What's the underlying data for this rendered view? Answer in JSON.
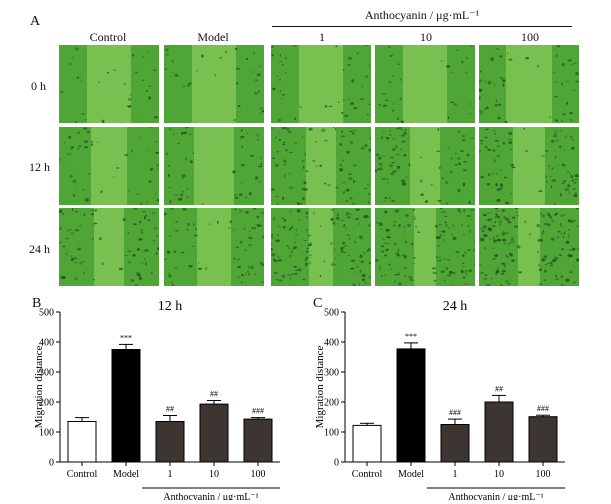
{
  "panel_a": {
    "letter": "A",
    "group_label": "Anthocyanin / μg·mL⁻¹",
    "columns": [
      "Control",
      "Model",
      "1",
      "10",
      "100"
    ],
    "rows": [
      "0 h",
      "12 h",
      "24 h"
    ]
  },
  "colors": {
    "bg_green": "#4fa637",
    "gap_green": "#86c95a",
    "cell_dark": "#1f4d1a",
    "bar_control": "#ffffff",
    "bar_model": "#000000",
    "bar_treat": "#3d3531"
  },
  "chart_data": [
    {
      "type": "bar",
      "panel": "B",
      "title": "12 h",
      "ylabel": "Migration distance",
      "ylim": [
        0,
        500
      ],
      "yticks": [
        "0",
        "100",
        "200",
        "300",
        "400",
        "500"
      ],
      "categories": [
        "Control",
        "Model",
        "1",
        "10",
        "100"
      ],
      "values": [
        135,
        375,
        135,
        193,
        143
      ],
      "errors": [
        13,
        17,
        20,
        12,
        5
      ],
      "annotations": [
        "",
        "***",
        "##",
        "##",
        "###"
      ],
      "group_label": "Anthocyanin / μg·mL⁻¹"
    },
    {
      "type": "bar",
      "panel": "C",
      "title": "24 h",
      "ylabel": "Migration distance",
      "ylim": [
        0,
        500
      ],
      "yticks": [
        "0",
        "100",
        "200",
        "300",
        "400",
        "500"
      ],
      "categories": [
        "Control",
        "Model",
        "1",
        "10",
        "100"
      ],
      "values": [
        122,
        377,
        125,
        200,
        151
      ],
      "errors": [
        7,
        20,
        18,
        22,
        5
      ],
      "annotations": [
        "",
        "***",
        "###",
        "##",
        "###"
      ],
      "group_label": "Anthocyanin / μg·mL⁻¹"
    }
  ]
}
